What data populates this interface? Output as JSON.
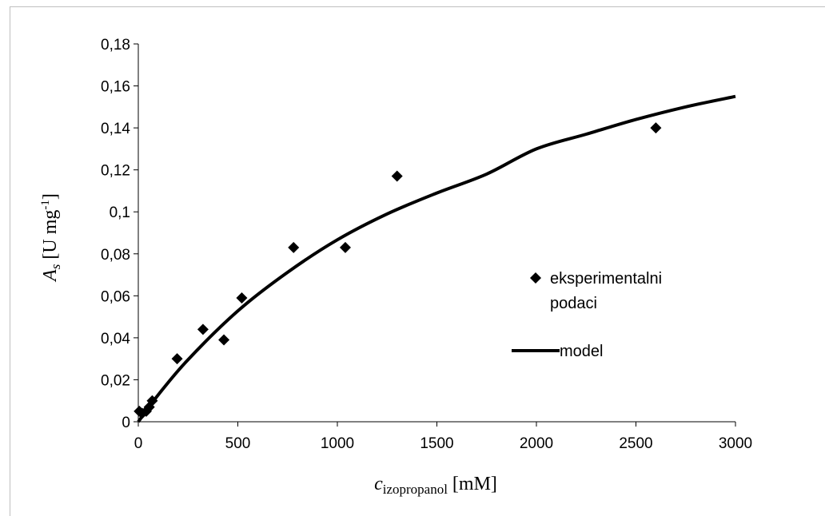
{
  "chart_data": {
    "type": "scatter",
    "title": "",
    "xlabel": {
      "main": "c",
      "sub": "izopropanol",
      "unit": " [mM]"
    },
    "ylabel": {
      "main": "A",
      "sub": "s",
      "unit_pre": " [U mg",
      "unit_sup": "-1",
      "unit_post": "]"
    },
    "xlim": [
      0,
      3000
    ],
    "ylim": [
      0,
      0.18
    ],
    "x_ticks": [
      0,
      500,
      1000,
      1500,
      2000,
      2500,
      3000
    ],
    "x_tick_labels": [
      "0",
      "500",
      "1000",
      "1500",
      "2000",
      "2500",
      "3000"
    ],
    "y_ticks": [
      0,
      0.02,
      0.04,
      0.06,
      0.08,
      0.1,
      0.12,
      0.14,
      0.16,
      0.18
    ],
    "y_tick_labels": [
      "0",
      "0,02",
      "0,04",
      "0,06",
      "0,08",
      "0,1",
      "0,12",
      "0,14",
      "0,16",
      "0,18"
    ],
    "grid": false,
    "legend": {
      "placement": "right"
    },
    "series": [
      {
        "name": "eksperimentalni podaci",
        "legend_lines": [
          "eksperimentalni",
          "podaci"
        ],
        "marker": "diamond",
        "color": "#000000",
        "points": [
          {
            "x": 5,
            "y": 0.005
          },
          {
            "x": 20,
            "y": 0.004
          },
          {
            "x": 40,
            "y": 0.005
          },
          {
            "x": 55,
            "y": 0.007
          },
          {
            "x": 70,
            "y": 0.01
          },
          {
            "x": 195,
            "y": 0.03
          },
          {
            "x": 325,
            "y": 0.044
          },
          {
            "x": 430,
            "y": 0.039
          },
          {
            "x": 520,
            "y": 0.059
          },
          {
            "x": 780,
            "y": 0.083
          },
          {
            "x": 1040,
            "y": 0.083
          },
          {
            "x": 1300,
            "y": 0.117
          },
          {
            "x": 2600,
            "y": 0.14
          }
        ]
      },
      {
        "name": "model",
        "marker": "line",
        "color": "#000000",
        "points": [
          {
            "x": 0,
            "y": 0.0
          },
          {
            "x": 100,
            "y": 0.0128
          },
          {
            "x": 250,
            "y": 0.0296
          },
          {
            "x": 500,
            "y": 0.0528
          },
          {
            "x": 750,
            "y": 0.0712
          },
          {
            "x": 1000,
            "y": 0.0867
          },
          {
            "x": 1250,
            "y": 0.099
          },
          {
            "x": 1500,
            "y": 0.109
          },
          {
            "x": 1750,
            "y": 0.118
          },
          {
            "x": 2000,
            "y": 0.13
          },
          {
            "x": 2250,
            "y": 0.137
          },
          {
            "x": 2500,
            "y": 0.144
          },
          {
            "x": 2750,
            "y": 0.15
          },
          {
            "x": 3000,
            "y": 0.155
          }
        ]
      }
    ]
  }
}
